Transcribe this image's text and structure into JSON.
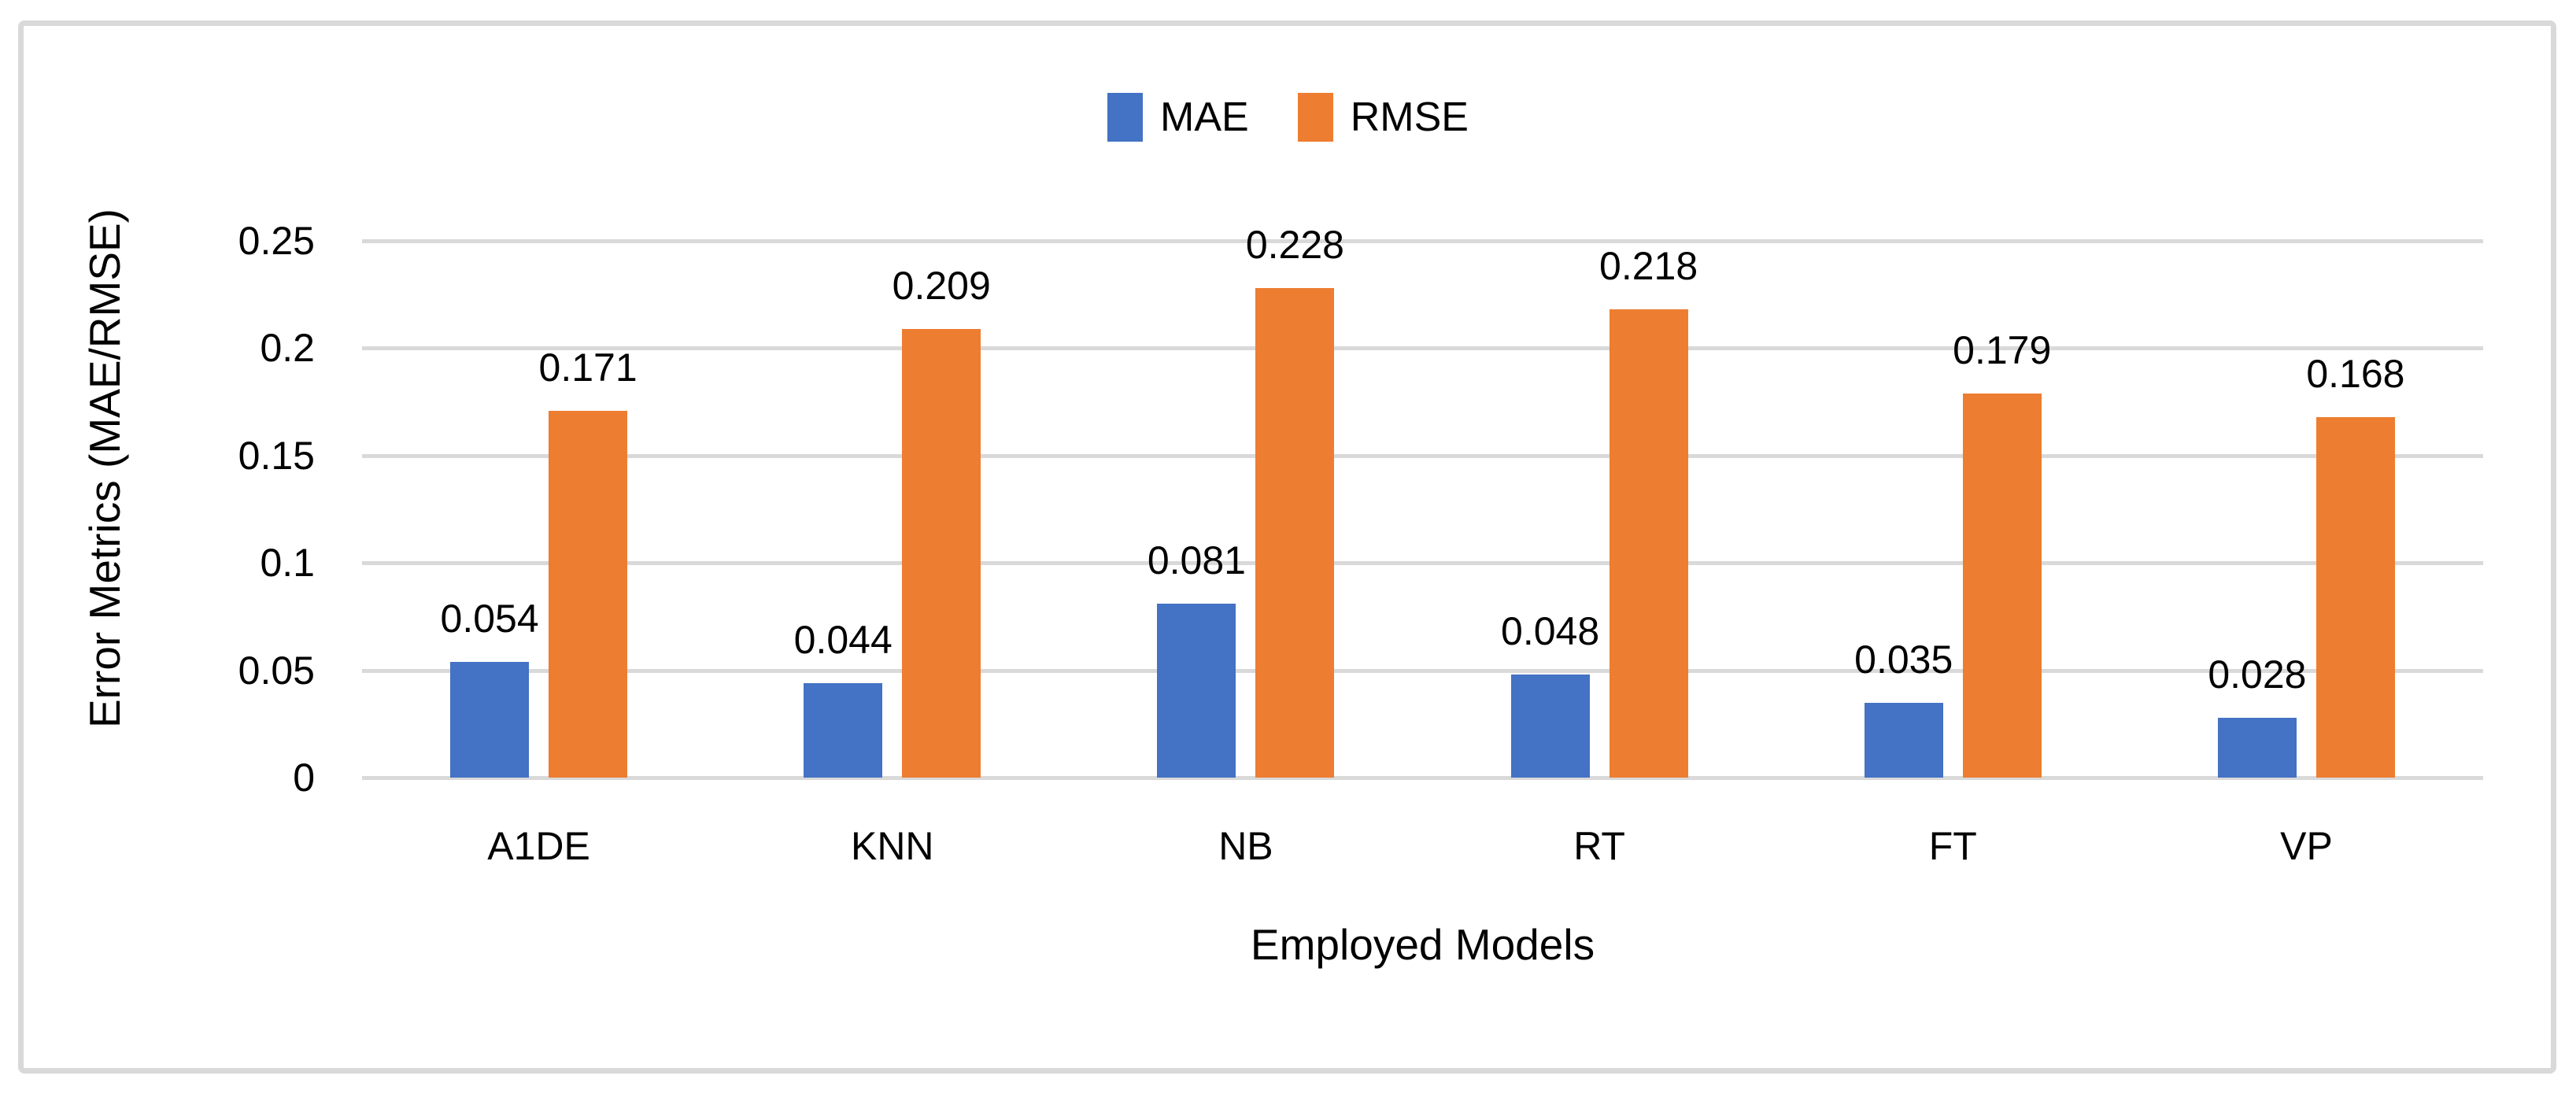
{
  "frame": {
    "border_color": "#D9D9D9",
    "background": "#FFFFFF"
  },
  "chart_data": {
    "type": "bar",
    "title": "",
    "xlabel": "Employed Models",
    "ylabel": "Error Metrics (MAE/RMSE)",
    "categories": [
      "A1DE",
      "KNN",
      "NB",
      "RT",
      "FT",
      "VP"
    ],
    "series": [
      {
        "name": "MAE",
        "color": "#4472C4",
        "values": [
          0.054,
          0.044,
          0.081,
          0.048,
          0.035,
          0.028
        ],
        "labels": [
          "0.054",
          "0.044",
          "0.081",
          "0.048",
          "0.035",
          "0.028"
        ]
      },
      {
        "name": "RMSE",
        "color": "#ED7D31",
        "values": [
          0.171,
          0.209,
          0.228,
          0.218,
          0.179,
          0.168
        ],
        "labels": [
          "0.171",
          "0.209",
          "0.228",
          "0.218",
          "0.179",
          "0.168"
        ]
      }
    ],
    "ylim": [
      0,
      0.25
    ],
    "yticks": [
      0.25,
      0.2,
      0.15,
      0.1,
      0.05,
      0
    ],
    "ytick_labels": [
      "0.25",
      "0.2",
      "0.15",
      "0.1",
      "0.05",
      "0"
    ],
    "grid": true,
    "gridline_color": "#D9D9D9",
    "legend_position": "top-center",
    "data_labels": true
  }
}
